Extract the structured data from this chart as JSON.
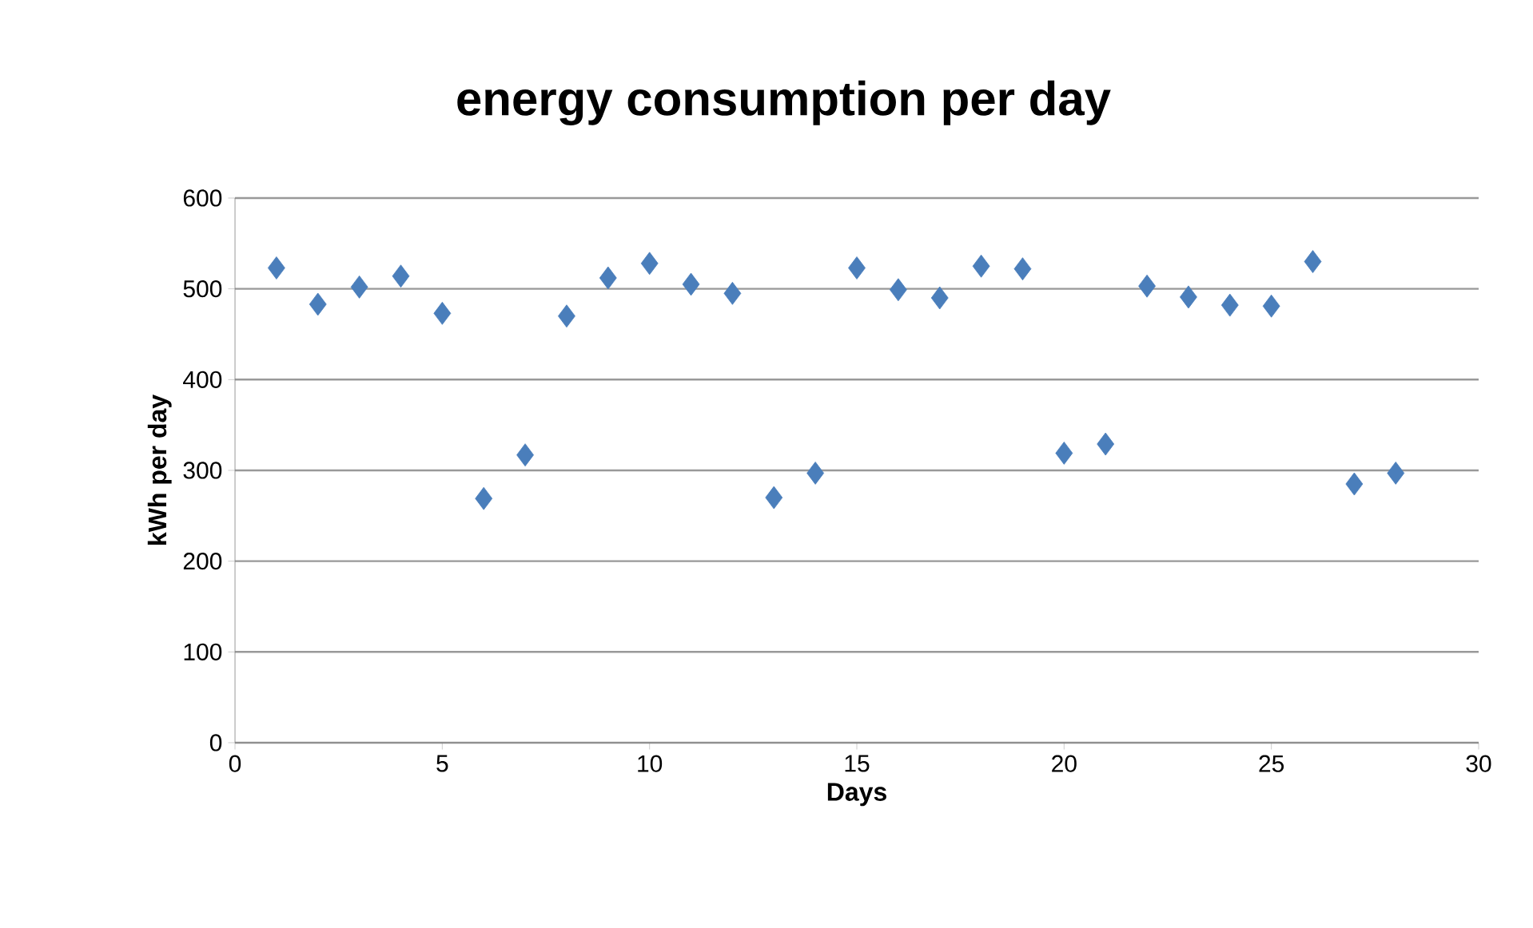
{
  "chart_data": {
    "type": "scatter",
    "title": "energy consumption per day",
    "xlabel": "Days",
    "ylabel": "kWh per day",
    "x": [
      1,
      2,
      3,
      4,
      5,
      6,
      7,
      8,
      9,
      10,
      11,
      12,
      13,
      14,
      15,
      16,
      17,
      18,
      19,
      20,
      21,
      22,
      23,
      24,
      25,
      26,
      27,
      28
    ],
    "values": [
      523,
      483,
      502,
      514,
      473,
      269,
      317,
      470,
      512,
      528,
      505,
      495,
      270,
      297,
      523,
      499,
      490,
      525,
      522,
      319,
      329,
      503,
      491,
      482,
      481,
      530,
      285,
      297
    ],
    "color": "#4a7ebb",
    "marker": "diamond",
    "xlim": [
      0,
      30
    ],
    "xticks": [
      0,
      5,
      10,
      15,
      20,
      25,
      30
    ],
    "ylim": [
      0,
      600
    ],
    "yticks": [
      0,
      100,
      200,
      300,
      400,
      500,
      600
    ],
    "grid": "y"
  }
}
